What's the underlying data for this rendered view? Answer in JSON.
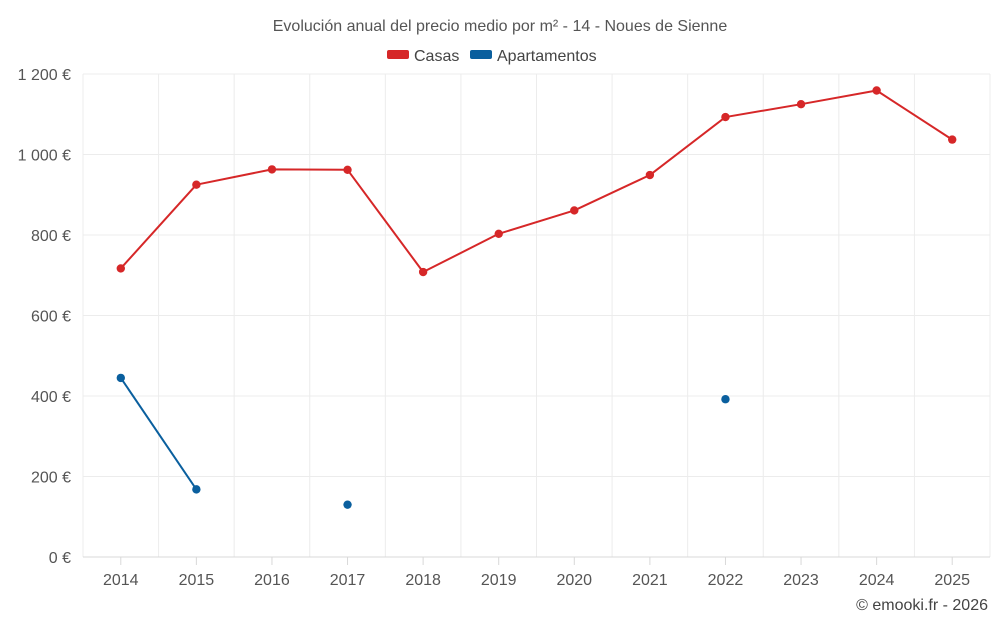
{
  "chart_data": {
    "type": "line",
    "title": "Evolución anual del precio medio por m² - 14 - Noues de Sienne",
    "categories": [
      "2014",
      "2015",
      "2016",
      "2017",
      "2018",
      "2019",
      "2020",
      "2021",
      "2022",
      "2023",
      "2024",
      "2025"
    ],
    "ylim": [
      0,
      1200
    ],
    "yticks": [
      0,
      200,
      400,
      600,
      800,
      1000,
      1200
    ],
    "ytick_labels": [
      "0 €",
      "200 €",
      "400 €",
      "600 €",
      "800 €",
      "1 000 €",
      "1 200 €"
    ],
    "grid": true,
    "legend_position": "top-center",
    "series": [
      {
        "name": "Casas",
        "color": "#d62728",
        "values": [
          717,
          925,
          963,
          962,
          708,
          803,
          861,
          949,
          1093,
          1125,
          1159,
          1037
        ]
      },
      {
        "name": "Apartamentos",
        "color": "#0a5f9e",
        "values": [
          445,
          168,
          null,
          130,
          null,
          null,
          null,
          null,
          392,
          null,
          null,
          null
        ]
      }
    ]
  },
  "credit": "© emooki.fr - 2026"
}
